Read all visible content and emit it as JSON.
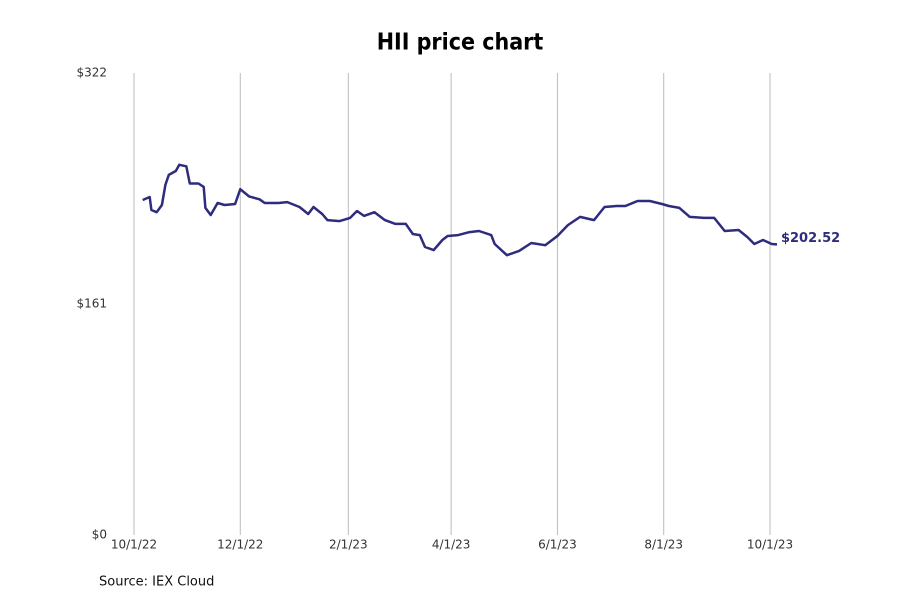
{
  "chart_data": {
    "type": "line",
    "title": "HII price chart",
    "source": "Source: IEX Cloud",
    "x": [
      "2022-10-06",
      "2022-10-10",
      "2022-10-11",
      "2022-10-14",
      "2022-10-17",
      "2022-10-19",
      "2022-10-21",
      "2022-10-25",
      "2022-10-27",
      "2022-10-31",
      "2022-11-02",
      "2022-11-07",
      "2022-11-10",
      "2022-11-11",
      "2022-11-14",
      "2022-11-18",
      "2022-11-22",
      "2022-11-28",
      "2022-12-01",
      "2022-12-06",
      "2022-12-12",
      "2022-12-15",
      "2022-12-23",
      "2022-12-28",
      "2023-01-04",
      "2023-01-09",
      "2023-01-12",
      "2023-01-17",
      "2023-01-20",
      "2023-01-27",
      "2023-02-02",
      "2023-02-06",
      "2023-02-10",
      "2023-02-16",
      "2023-02-22",
      "2023-02-28",
      "2023-03-06",
      "2023-03-10",
      "2023-03-14",
      "2023-03-17",
      "2023-03-22",
      "2023-03-27",
      "2023-03-30",
      "2023-04-05",
      "2023-04-11",
      "2023-04-17",
      "2023-04-24",
      "2023-04-26",
      "2023-05-03",
      "2023-05-10",
      "2023-05-17",
      "2023-05-25",
      "2023-06-01",
      "2023-06-07",
      "2023-06-14",
      "2023-06-22",
      "2023-06-28",
      "2023-07-05",
      "2023-07-10",
      "2023-07-17",
      "2023-07-24",
      "2023-07-31",
      "2023-08-04",
      "2023-08-10",
      "2023-08-16",
      "2023-08-24",
      "2023-08-30",
      "2023-09-05",
      "2023-09-13",
      "2023-09-18",
      "2023-09-22",
      "2023-09-27",
      "2023-10-02",
      "2023-10-05"
    ],
    "series": [
      {
        "name": "HII",
        "color": "#2e2c7c",
        "values": [
          233.5,
          235.6,
          226.5,
          225,
          230,
          244,
          251,
          253.7,
          258,
          257,
          245,
          245,
          242.6,
          228,
          223,
          231.4,
          230,
          230.7,
          241,
          236,
          234,
          231.4,
          231.4,
          232,
          228.6,
          223.7,
          228.6,
          223.7,
          219.5,
          218.8,
          221,
          225.8,
          222.4,
          225,
          219.5,
          216.8,
          216.8,
          209.8,
          209,
          200.7,
          198.6,
          205.6,
          208.4,
          209,
          211,
          211.9,
          209,
          202.8,
          195,
          198,
          203.5,
          202,
          208.4,
          216,
          221.7,
          219.5,
          228.6,
          229.3,
          229.3,
          232.8,
          232.8,
          230.7,
          229.3,
          228,
          221.7,
          221,
          221,
          211.9,
          212.6,
          207.7,
          202.8,
          205.6,
          202.8,
          202.52
        ],
        "value_labels": [
          null,
          null,
          null,
          null,
          null,
          null,
          null,
          null,
          null,
          null,
          null,
          null,
          null,
          null,
          null,
          null,
          null,
          null,
          null,
          null,
          null,
          null,
          null,
          null,
          null,
          null,
          null,
          null,
          null,
          null,
          null,
          null,
          null,
          null,
          null,
          null,
          null,
          null,
          null,
          null,
          null,
          null,
          null,
          null,
          null,
          null,
          null,
          null,
          null,
          null,
          null,
          null,
          null,
          null,
          null,
          null,
          null,
          null,
          null,
          null,
          null,
          null,
          null,
          null,
          null,
          null,
          null,
          null,
          null,
          null,
          null,
          null,
          null,
          "$202.52"
        ]
      }
    ],
    "xlim": [
      "2022-10-01",
      "2023-10-01"
    ],
    "xticks": [
      {
        "value": "2022-10-01",
        "label": "10/1/22"
      },
      {
        "value": "2022-12-01",
        "label": "12/1/22"
      },
      {
        "value": "2023-02-01",
        "label": "2/1/23"
      },
      {
        "value": "2023-04-01",
        "label": "4/1/23"
      },
      {
        "value": "2023-06-01",
        "label": "6/1/23"
      },
      {
        "value": "2023-08-01",
        "label": "8/1/23"
      },
      {
        "value": "2023-10-01",
        "label": "10/1/23"
      }
    ],
    "ylim": [
      0,
      322
    ],
    "yticks": [
      {
        "value": 0,
        "label": "$0"
      },
      {
        "value": 161,
        "label": "$161"
      },
      {
        "value": 322,
        "label": "$322"
      }
    ],
    "grid": "x"
  }
}
